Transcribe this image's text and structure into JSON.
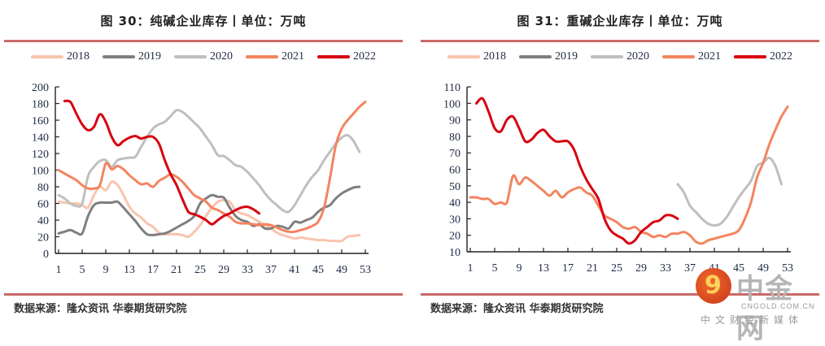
{
  "chart_data": [
    {
      "type": "line",
      "title": "图 30：纯碱企业库存丨单位：万吨",
      "xlabel": "",
      "ylabel": "",
      "ylim": [
        0,
        200
      ],
      "yticks": [
        0,
        20,
        40,
        60,
        80,
        100,
        120,
        140,
        160,
        180,
        200
      ],
      "xlim": [
        1,
        53
      ],
      "xticks": [
        1,
        5,
        9,
        13,
        17,
        21,
        25,
        29,
        33,
        37,
        41,
        45,
        49,
        53
      ],
      "grid": false,
      "legend": "top",
      "series": [
        {
          "name": "2018",
          "color": "#f9c4ad",
          "x": [
            1,
            2,
            3,
            4,
            5,
            6,
            7,
            8,
            9,
            10,
            11,
            12,
            13,
            14,
            15,
            16,
            17,
            18,
            19,
            20,
            21,
            22,
            23,
            24,
            25,
            26,
            27,
            28,
            29,
            30,
            31,
            32,
            33,
            34,
            35,
            36,
            37,
            38,
            39,
            40,
            41,
            42,
            43,
            44,
            45,
            46,
            47,
            48,
            49,
            50,
            51,
            52
          ],
          "values": [
            62,
            61,
            60,
            60,
            58,
            55,
            70,
            80,
            76,
            86,
            82,
            70,
            56,
            48,
            43,
            36,
            32,
            25,
            23,
            23,
            23,
            22,
            20,
            26,
            34,
            45,
            55,
            62,
            64,
            62,
            52,
            48,
            46,
            42,
            38,
            34,
            30,
            25,
            22,
            20,
            18,
            19,
            18,
            17,
            16,
            16,
            15,
            15,
            15,
            20,
            21,
            22
          ]
        },
        {
          "name": "2019",
          "color": "#7f7f7f",
          "x": [
            1,
            2,
            3,
            4,
            5,
            6,
            7,
            8,
            9,
            10,
            11,
            12,
            13,
            14,
            15,
            16,
            17,
            18,
            19,
            20,
            21,
            22,
            23,
            24,
            25,
            26,
            27,
            28,
            29,
            30,
            31,
            32,
            33,
            34,
            35,
            36,
            37,
            38,
            39,
            40,
            41,
            42,
            43,
            44,
            45,
            46,
            47,
            48,
            49,
            50,
            51,
            52
          ],
          "values": [
            24,
            26,
            28,
            25,
            24,
            45,
            58,
            61,
            61,
            61,
            62,
            55,
            47,
            39,
            30,
            23,
            22,
            23,
            24,
            27,
            31,
            35,
            39,
            45,
            60,
            66,
            70,
            68,
            67,
            55,
            45,
            40,
            38,
            33,
            35,
            30,
            30,
            33,
            32,
            30,
            38,
            37,
            40,
            43,
            50,
            55,
            58,
            66,
            72,
            76,
            79,
            80
          ]
        },
        {
          "name": "2020",
          "color": "#bfbfbf",
          "x": [
            1,
            2,
            3,
            4,
            5,
            6,
            7,
            8,
            9,
            10,
            11,
            12,
            13,
            14,
            15,
            16,
            17,
            18,
            19,
            20,
            21,
            22,
            23,
            24,
            25,
            26,
            27,
            28,
            29,
            30,
            31,
            32,
            33,
            34,
            35,
            36,
            37,
            38,
            39,
            40,
            41,
            42,
            43,
            44,
            45,
            46,
            47,
            48,
            49,
            50,
            51,
            52
          ],
          "values": [
            70,
            66,
            60,
            57,
            60,
            93,
            104,
            111,
            112,
            104,
            112,
            114,
            115,
            116,
            128,
            140,
            150,
            155,
            158,
            165,
            172,
            170,
            164,
            157,
            150,
            140,
            130,
            118,
            117,
            112,
            106,
            104,
            98,
            90,
            82,
            72,
            64,
            58,
            52,
            50,
            58,
            70,
            82,
            92,
            100,
            112,
            122,
            132,
            139,
            142,
            135,
            122
          ]
        },
        {
          "name": "2021",
          "color": "#f4845f",
          "x": [
            1,
            2,
            3,
            4,
            5,
            6,
            7,
            8,
            9,
            10,
            11,
            12,
            13,
            14,
            15,
            16,
            17,
            18,
            19,
            20,
            21,
            22,
            23,
            24,
            25,
            26,
            27,
            28,
            29,
            30,
            31,
            32,
            33,
            34,
            35,
            36,
            37,
            38,
            39,
            40,
            41,
            42,
            43,
            44,
            45,
            46,
            47,
            48,
            49,
            50,
            51,
            52,
            53
          ],
          "values": [
            100,
            96,
            92,
            88,
            82,
            78,
            78,
            82,
            108,
            101,
            105,
            101,
            94,
            88,
            83,
            84,
            80,
            87,
            91,
            95,
            92,
            86,
            78,
            70,
            66,
            62,
            55,
            52,
            48,
            44,
            38,
            36,
            36,
            35,
            34,
            35,
            34,
            31,
            28,
            26,
            26,
            28,
            30,
            33,
            38,
            55,
            90,
            130,
            150,
            160,
            168,
            176,
            182
          ]
        },
        {
          "name": "2022",
          "color": "#d7000f",
          "x": [
            2,
            3,
            4,
            5,
            6,
            7,
            8,
            9,
            10,
            11,
            12,
            13,
            14,
            15,
            16,
            17,
            18,
            19,
            20,
            21,
            22,
            23,
            24,
            25,
            26,
            27,
            28,
            29,
            30,
            31,
            32,
            33,
            34,
            35
          ],
          "values": [
            183,
            182,
            168,
            155,
            148,
            152,
            167,
            158,
            140,
            130,
            135,
            139,
            141,
            138,
            140,
            140,
            132,
            112,
            95,
            82,
            65,
            50,
            47,
            44,
            40,
            35,
            40,
            45,
            48,
            52,
            55,
            56,
            53,
            48
          ]
        }
      ]
    },
    {
      "type": "line",
      "title": "图 31：重碱企业库存丨单位：万吨",
      "xlabel": "",
      "ylabel": "",
      "ylim": [
        10,
        110
      ],
      "yticks": [
        10,
        20,
        30,
        40,
        50,
        60,
        70,
        80,
        90,
        100,
        110
      ],
      "xlim": [
        1,
        53
      ],
      "xticks": [
        1,
        5,
        9,
        13,
        17,
        21,
        25,
        29,
        33,
        37,
        41,
        45,
        49,
        53
      ],
      "grid": false,
      "legend": "top",
      "series": [
        {
          "name": "2018",
          "color": "#f9c4ad",
          "x": [],
          "values": []
        },
        {
          "name": "2019",
          "color": "#7f7f7f",
          "x": [],
          "values": []
        },
        {
          "name": "2020",
          "color": "#bfbfbf",
          "x": [
            35,
            36,
            37,
            38,
            39,
            40,
            41,
            42,
            43,
            44,
            45,
            46,
            47,
            48,
            49,
            50,
            51,
            52
          ],
          "values": [
            51,
            46,
            38,
            34,
            30,
            27,
            26,
            27,
            31,
            37,
            43,
            48,
            53,
            62,
            64,
            67,
            62,
            51
          ]
        },
        {
          "name": "2021",
          "color": "#f4845f",
          "x": [
            1,
            2,
            3,
            4,
            5,
            6,
            7,
            8,
            9,
            10,
            11,
            12,
            13,
            14,
            15,
            16,
            17,
            18,
            19,
            20,
            21,
            22,
            23,
            24,
            25,
            26,
            27,
            28,
            29,
            30,
            31,
            32,
            33,
            34,
            35,
            36,
            37,
            38,
            39,
            40,
            41,
            42,
            43,
            44,
            45,
            46,
            47,
            48,
            49,
            50,
            51,
            52,
            53
          ],
          "values": [
            43,
            43,
            42,
            42,
            39,
            40,
            40,
            56,
            51,
            55,
            53,
            50,
            47,
            44,
            47,
            43,
            46,
            48,
            49,
            46,
            44,
            38,
            32,
            30,
            28,
            25,
            24,
            25,
            22,
            21,
            19,
            20,
            19,
            21,
            21,
            22,
            20,
            16,
            15,
            17,
            18,
            19,
            20,
            21,
            23,
            30,
            40,
            55,
            64,
            75,
            84,
            92,
            98
          ]
        },
        {
          "name": "2022",
          "color": "#d7000f",
          "x": [
            2,
            3,
            4,
            5,
            6,
            7,
            8,
            9,
            10,
            11,
            12,
            13,
            14,
            15,
            16,
            17,
            18,
            19,
            20,
            21,
            22,
            23,
            24,
            25,
            26,
            27,
            28,
            29,
            30,
            31,
            32,
            33,
            34,
            35
          ],
          "values": [
            100,
            103,
            95,
            85,
            83,
            90,
            92,
            85,
            77,
            78,
            82,
            84,
            80,
            77,
            77,
            77,
            72,
            62,
            54,
            48,
            42,
            30,
            23,
            20,
            18,
            15,
            17,
            22,
            25,
            28,
            29,
            32,
            32,
            30
          ]
        }
      ]
    }
  ],
  "legend_labels": [
    "2018",
    "2019",
    "2020",
    "2021",
    "2022"
  ],
  "source_text": "数据来源：隆众资讯 华泰期货研究院",
  "watermark": {
    "logo_glyph": "9",
    "name": "中金网",
    "url": "CNGOLD.COM.CN",
    "tagline": "中文财经新媒体"
  }
}
